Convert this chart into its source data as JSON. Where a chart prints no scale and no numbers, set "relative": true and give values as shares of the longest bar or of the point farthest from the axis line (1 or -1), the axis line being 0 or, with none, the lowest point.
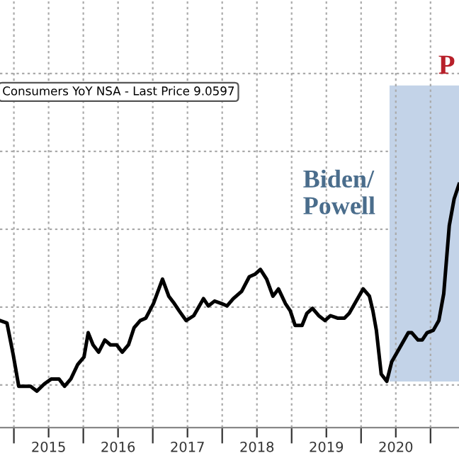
{
  "chart_data": {
    "type": "line",
    "relative": true,
    "annotations": [
      "Consumers YoY NSA - Last Price 9.0597",
      "Biden/\nPowell",
      "P"
    ],
    "x": [
      2014.8,
      2014.9,
      2014.99,
      2015.07,
      2015.17,
      2015.24,
      2015.33,
      2015.44,
      2015.54,
      2015.65,
      2015.73,
      2015.82,
      2015.92,
      2016.01,
      2016.07,
      2016.14,
      2016.22,
      2016.31,
      2016.39,
      2016.48,
      2016.56,
      2016.65,
      2016.73,
      2016.82,
      2016.9,
      2017.01,
      2017.14,
      2017.23,
      2017.31,
      2017.38,
      2017.48,
      2017.59,
      2017.65,
      2017.73,
      2017.8,
      2017.89,
      2017.99,
      2018.07,
      2018.16,
      2018.28,
      2018.39,
      2018.47,
      2018.55,
      2018.64,
      2018.73,
      2018.81,
      2018.91,
      2018.98,
      2019.05,
      2019.15,
      2019.22,
      2019.3,
      2019.39,
      2019.48,
      2019.56,
      2019.66,
      2019.76,
      2019.83,
      2019.93,
      2020.03,
      2020.12,
      2020.17,
      2020.22,
      2020.29,
      2020.37,
      2020.44,
      2020.58,
      2020.68,
      2020.73,
      2020.82,
      2020.88,
      2020.95,
      2021.04,
      2021.12,
      2021.19,
      2021.27,
      2021.34,
      2021.41
    ],
    "series": [
      {
        "color": "#000000",
        "values": [
          0.44,
          0.43,
          0.3,
          0.17,
          0.17,
          0.17,
          0.15,
          0.18,
          0.2,
          0.2,
          0.17,
          0.2,
          0.26,
          0.29,
          0.39,
          0.34,
          0.31,
          0.36,
          0.34,
          0.34,
          0.31,
          0.34,
          0.41,
          0.44,
          0.45,
          0.51,
          0.61,
          0.54,
          0.51,
          0.48,
          0.44,
          0.46,
          0.49,
          0.53,
          0.5,
          0.52,
          0.51,
          0.5,
          0.53,
          0.56,
          0.62,
          0.63,
          0.65,
          0.61,
          0.54,
          0.57,
          0.51,
          0.48,
          0.42,
          0.42,
          0.47,
          0.49,
          0.46,
          0.44,
          0.46,
          0.45,
          0.45,
          0.47,
          0.52,
          0.57,
          0.54,
          0.48,
          0.4,
          0.22,
          0.19,
          0.27,
          0.34,
          0.39,
          0.39,
          0.36,
          0.36,
          0.39,
          0.4,
          0.44,
          0.55,
          0.83,
          0.94,
          1
        ]
      }
    ],
    "xlim": [
      2014.8,
      2021.41
    ],
    "xticks": [
      {
        "value": 2015,
        "label": null
      },
      {
        "value": 2015.5,
        "label": "2015"
      },
      {
        "value": 2016,
        "label": null
      },
      {
        "value": 2016.5,
        "label": "2016"
      },
      {
        "value": 2017,
        "label": null
      },
      {
        "value": 2017.5,
        "label": "2017"
      },
      {
        "value": 2018,
        "label": null
      },
      {
        "value": 2018.5,
        "label": "2018"
      },
      {
        "value": 2019,
        "label": null
      },
      {
        "value": 2019.5,
        "label": "2019"
      },
      {
        "value": 2020,
        "label": null
      },
      {
        "value": 2020.5,
        "label": "2020"
      },
      {
        "value": 2021,
        "label": null
      }
    ],
    "bands": [
      {
        "axis": "x",
        "from": 2020.41,
        "to": 2021.41,
        "color": "#c3d3e8"
      }
    ],
    "grid": true,
    "line_style": "solid",
    "marker": "none"
  }
}
